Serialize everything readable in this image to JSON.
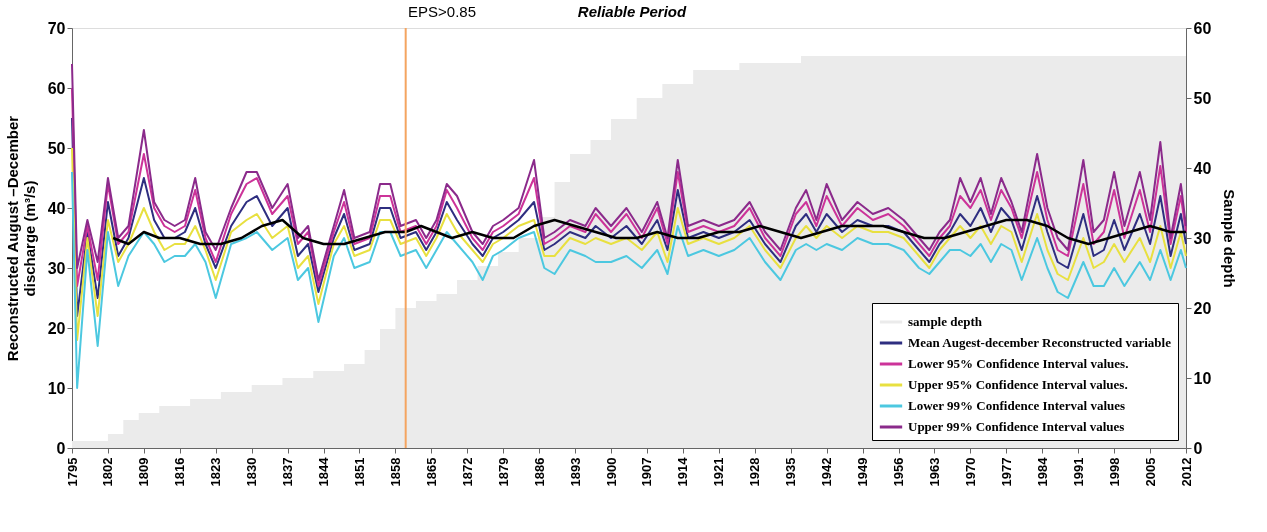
{
  "chart_data": {
    "type": "line",
    "annotations": [
      "EPS>0.85",
      "Reliable Period"
    ],
    "ylabel": "Reconstructed August –December\ndischarge (m³/s)",
    "y2label": "Sample depth",
    "x": [
      1795,
      1796,
      1798,
      1800,
      1802,
      1804,
      1806,
      1809,
      1811,
      1813,
      1815,
      1817,
      1819,
      1821,
      1823,
      1826,
      1829,
      1831,
      1834,
      1837,
      1839,
      1841,
      1843,
      1846,
      1848,
      1850,
      1853,
      1855,
      1857,
      1859,
      1862,
      1864,
      1866,
      1868,
      1870,
      1873,
      1875,
      1877,
      1879,
      1882,
      1885,
      1887,
      1889,
      1892,
      1895,
      1897,
      1900,
      1903,
      1906,
      1909,
      1911,
      1913,
      1915,
      1918,
      1921,
      1924,
      1927,
      1930,
      1933,
      1936,
      1938,
      1940,
      1942,
      1945,
      1948,
      1951,
      1954,
      1957,
      1960,
      1962,
      1964,
      1966,
      1968,
      1970,
      1972,
      1974,
      1976,
      1978,
      1980,
      1983,
      1985,
      1987,
      1989,
      1992,
      1994,
      1996,
      1998,
      2000,
      2003,
      2005,
      2007,
      2009,
      2011,
      2012
    ],
    "xlim": [
      1795,
      2012
    ],
    "xticks": [
      1795,
      1802,
      1809,
      1816,
      1823,
      1830,
      1837,
      1844,
      1851,
      1858,
      1865,
      1872,
      1879,
      1886,
      1893,
      1900,
      1907,
      1914,
      1921,
      1928,
      1935,
      1942,
      1949,
      1956,
      1963,
      1970,
      1977,
      1984,
      1991,
      1998,
      2005,
      2012
    ],
    "ylim": [
      0,
      70
    ],
    "yticks": [
      0,
      10,
      20,
      30,
      40,
      50,
      60,
      70
    ],
    "y2lim": [
      0,
      60
    ],
    "y2ticks": [
      0,
      10,
      20,
      30,
      40,
      50,
      60
    ],
    "grid": false,
    "legend": "bottom right",
    "ref_lines": [
      {
        "axis": "x",
        "value": 1860,
        "color": "#f4a460"
      }
    ],
    "series": [
      {
        "name": "sample depth",
        "type": "area",
        "axis": "y2",
        "color": "#ebebeb",
        "x": [
          1795,
          1801,
          1802,
          1805,
          1808,
          1812,
          1818,
          1824,
          1830,
          1836,
          1842,
          1848,
          1852,
          1855,
          1858,
          1862,
          1866,
          1870,
          1874,
          1878,
          1882,
          1886,
          1889,
          1892,
          1896,
          1900,
          1905,
          1910,
          1916,
          1925,
          1937,
          2012
        ],
        "values": [
          1,
          1,
          2,
          4,
          5,
          6,
          7,
          8,
          9,
          10,
          11,
          12,
          14,
          17,
          20,
          21,
          22,
          24,
          26,
          28,
          30,
          33,
          38,
          42,
          44,
          47,
          50,
          52,
          54,
          55,
          56,
          56
        ]
      },
      {
        "name": "Mean Augest-december Reconstructed variable",
        "color": "#2e2e80",
        "values": [
          55,
          22,
          36,
          25,
          41,
          32,
          35,
          45,
          38,
          35,
          35,
          36,
          40,
          34,
          30,
          37,
          41,
          42,
          37,
          40,
          32,
          34,
          26,
          35,
          39,
          33,
          34,
          40,
          40,
          35,
          36,
          33,
          36,
          41,
          38,
          34,
          32,
          35,
          36,
          38,
          41,
          33,
          34,
          36,
          35,
          37,
          35,
          37,
          34,
          38,
          33,
          43,
          35,
          36,
          35,
          36,
          38,
          34,
          31,
          37,
          39,
          36,
          39,
          36,
          38,
          37,
          37,
          36,
          33,
          31,
          34,
          36,
          39,
          37,
          40,
          36,
          40,
          38,
          33,
          42,
          36,
          31,
          30,
          39,
          32,
          33,
          38,
          33,
          39,
          34,
          42,
          32,
          39,
          34
        ]
      },
      {
        "name": "Lower 95% Confidence Interval values.",
        "color": "#cc3399",
        "values": [
          60,
          27,
          37,
          28,
          44,
          34,
          36,
          49,
          40,
          37,
          36,
          37,
          43,
          35,
          31,
          39,
          44,
          45,
          39,
          42,
          34,
          36,
          27,
          36,
          41,
          34,
          35,
          42,
          42,
          36,
          37,
          34,
          37,
          43,
          40,
          35,
          33,
          36,
          37,
          39,
          45,
          34,
          35,
          37,
          36,
          39,
          36,
          39,
          35,
          40,
          34,
          46,
          36,
          37,
          36,
          37,
          40,
          35,
          32,
          39,
          41,
          37,
          42,
          37,
          40,
          38,
          39,
          37,
          34,
          32,
          35,
          37,
          42,
          40,
          43,
          38,
          43,
          40,
          35,
          46,
          38,
          33,
          32,
          44,
          34,
          36,
          43,
          35,
          43,
          36,
          47,
          34,
          42,
          36
        ]
      },
      {
        "name": "Upper 95% Confidence Interval values.",
        "color": "#e8e040",
        "values": [
          50,
          18,
          35,
          22,
          38,
          31,
          34,
          40,
          36,
          33,
          34,
          34,
          37,
          33,
          28,
          36,
          38,
          39,
          35,
          37,
          30,
          32,
          24,
          34,
          37,
          32,
          33,
          38,
          38,
          34,
          35,
          32,
          35,
          39,
          36,
          33,
          31,
          34,
          35,
          37,
          38,
          32,
          32,
          35,
          34,
          35,
          34,
          35,
          33,
          36,
          31,
          40,
          34,
          35,
          34,
          35,
          37,
          33,
          30,
          35,
          37,
          35,
          37,
          35,
          37,
          36,
          36,
          35,
          32,
          30,
          33,
          35,
          37,
          35,
          37,
          34,
          37,
          36,
          31,
          39,
          33,
          29,
          28,
          35,
          30,
          31,
          34,
          31,
          35,
          31,
          37,
          30,
          36,
          32
        ]
      },
      {
        "name": "Lower 99% Confidence Interval values",
        "color": "#4cc8e0",
        "values": [
          46,
          10,
          33,
          17,
          36,
          27,
          32,
          36,
          34,
          31,
          32,
          32,
          34,
          31,
          25,
          34,
          35,
          36,
          33,
          35,
          28,
          30,
          21,
          32,
          35,
          30,
          31,
          36,
          36,
          32,
          33,
          30,
          33,
          36,
          34,
          31,
          28,
          32,
          33,
          35,
          36,
          30,
          29,
          33,
          32,
          31,
          31,
          32,
          30,
          33,
          29,
          37,
          32,
          33,
          32,
          33,
          35,
          31,
          28,
          33,
          34,
          33,
          34,
          33,
          35,
          34,
          34,
          33,
          30,
          29,
          31,
          33,
          33,
          32,
          34,
          31,
          34,
          33,
          28,
          35,
          30,
          26,
          25,
          31,
          27,
          27,
          30,
          27,
          31,
          28,
          33,
          28,
          33,
          30
        ]
      },
      {
        "name": "Upper 99% Confidence Interval values",
        "color": "#8b2a8b",
        "values": [
          64,
          30,
          38,
          31,
          45,
          35,
          37,
          53,
          41,
          38,
          37,
          38,
          45,
          36,
          33,
          40,
          46,
          46,
          40,
          44,
          35,
          37,
          28,
          37,
          43,
          35,
          36,
          44,
          44,
          37,
          38,
          35,
          38,
          44,
          42,
          36,
          34,
          37,
          38,
          40,
          48,
          35,
          36,
          38,
          37,
          40,
          37,
          40,
          36,
          41,
          35,
          48,
          37,
          38,
          37,
          38,
          41,
          36,
          33,
          40,
          43,
          38,
          44,
          38,
          41,
          39,
          40,
          38,
          35,
          33,
          36,
          38,
          45,
          41,
          45,
          39,
          45,
          41,
          36,
          49,
          40,
          35,
          33,
          48,
          36,
          38,
          46,
          37,
          46,
          38,
          51,
          35,
          44,
          37
        ]
      },
      {
        "color": "#000000",
        "x": [
          1803,
          1806,
          1809,
          1812,
          1816,
          1820,
          1824,
          1828,
          1832,
          1836,
          1840,
          1844,
          1848,
          1852,
          1856,
          1860,
          1863,
          1866,
          1869,
          1873,
          1877,
          1881,
          1885,
          1889,
          1893,
          1897,
          1901,
          1905,
          1909,
          1913,
          1917,
          1921,
          1925,
          1929,
          1933,
          1937,
          1941,
          1945,
          1949,
          1953,
          1957,
          1961,
          1965,
          1969,
          1973,
          1977,
          1981,
          1985,
          1989,
          1993,
          1997,
          2001,
          2005,
          2009,
          2012
        ],
        "values": [
          35,
          34,
          36,
          35,
          35,
          34,
          34,
          35,
          37,
          38,
          35,
          34,
          34,
          35,
          36,
          36,
          37,
          36,
          35,
          36,
          35,
          35,
          37,
          38,
          37,
          36,
          35,
          35,
          36,
          35,
          35,
          36,
          36,
          37,
          36,
          35,
          36,
          37,
          37,
          37,
          36,
          35,
          35,
          36,
          37,
          38,
          38,
          37,
          35,
          34,
          35,
          36,
          37,
          36,
          36
        ]
      }
    ]
  }
}
